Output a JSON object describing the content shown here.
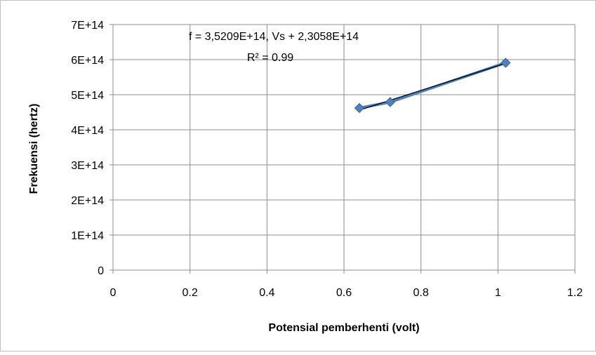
{
  "chart_data": {
    "type": "scatter",
    "title": "",
    "xlabel": "Potensial pemberhenti (volt)",
    "ylabel": "Frekuensi (hertz)",
    "xlim": [
      0,
      1.2
    ],
    "ylim": [
      0,
      700000000000000
    ],
    "x_ticks": [
      "0",
      "0.2",
      "0.4",
      "0.6",
      "0.8",
      "1",
      "1.2"
    ],
    "y_ticks": [
      "0",
      "1E+14",
      "2E+14",
      "3E+14",
      "4E+14",
      "5E+14",
      "6E+14",
      "7E+14"
    ],
    "grid": true,
    "legend": "none",
    "series": [
      {
        "points": [
          {
            "x": 0.64,
            "y": 462000000000000
          },
          {
            "x": 0.72,
            "y": 479000000000000
          },
          {
            "x": 1.02,
            "y": 591000000000000
          }
        ],
        "color": "#4f81bd",
        "marker": "diamond"
      }
    ],
    "trendline": {
      "slope": 352090000000000,
      "intercept": 230580000000000,
      "x_range": [
        0.64,
        1.02
      ],
      "color": "#000000"
    },
    "annotations": {
      "equation": "f =  3,5209E+14, Vs +  2,3058E+14",
      "r_squared": "R² =  0.99"
    }
  }
}
